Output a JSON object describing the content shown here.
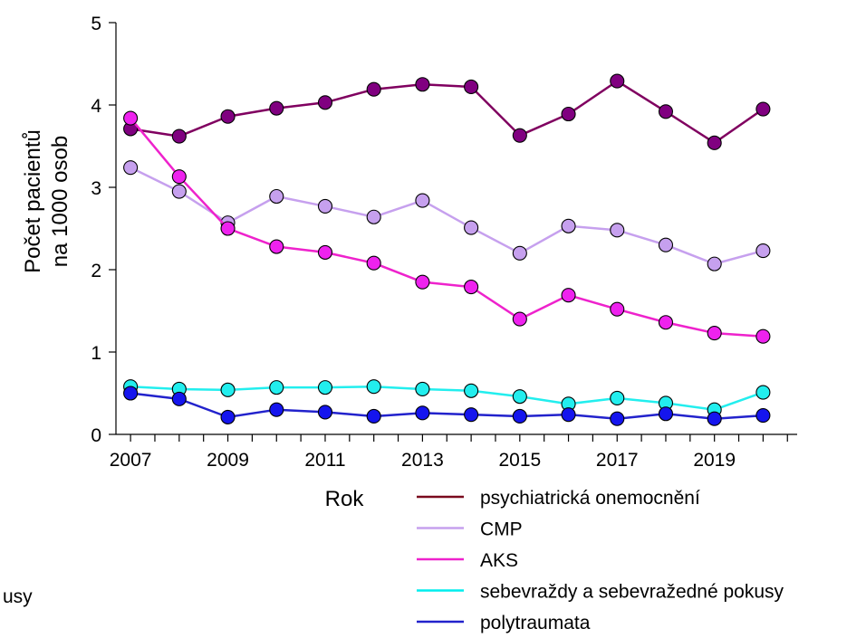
{
  "chart_data": {
    "type": "line",
    "title": "",
    "xlabel": "Rok",
    "ylabel_lines": [
      "Počet pacientů",
      "na 1000 osob"
    ],
    "x": [
      2007,
      2008,
      2009,
      2010,
      2011,
      2012,
      2013,
      2014,
      2015,
      2016,
      2017,
      2018,
      2019,
      2020
    ],
    "x_tick_labels": [
      "2007",
      "2009",
      "2011",
      "2013",
      "2015",
      "2017",
      "2019"
    ],
    "x_tick_values": [
      2007,
      2009,
      2011,
      2013,
      2015,
      2017,
      2019
    ],
    "xlim": [
      2006.7,
      2020.7
    ],
    "ylim": [
      0,
      5
    ],
    "y_ticks": [
      0,
      1,
      2,
      3,
      4,
      5
    ],
    "y_tick_labels": [
      "0",
      "1",
      "2",
      "3",
      "4",
      "5"
    ],
    "grid": false,
    "legend_position": "bottom-right",
    "clipped_fragment": "usy",
    "series": [
      {
        "name": "psychiatrická onemocnění",
        "legend_color": "#7a0a1e",
        "line_color": "#800060",
        "marker_color": "#800080",
        "values": [
          3.71,
          3.62,
          3.86,
          3.96,
          4.03,
          4.19,
          4.25,
          4.22,
          3.63,
          3.89,
          4.29,
          3.92,
          3.54,
          3.95
        ]
      },
      {
        "name": "CMP",
        "legend_color": "#c6a0ee",
        "line_color": "#c6a0ee",
        "marker_color": "#c6a0ee",
        "values": [
          3.24,
          2.95,
          2.57,
          2.89,
          2.77,
          2.64,
          2.84,
          2.51,
          2.2,
          2.53,
          2.48,
          2.3,
          2.07,
          2.23
        ]
      },
      {
        "name": "AKS",
        "legend_color": "#ee22cc",
        "line_color": "#ee22cc",
        "marker_color": "#ee22ee",
        "values": [
          3.84,
          3.13,
          2.5,
          2.28,
          2.21,
          2.08,
          1.85,
          1.79,
          1.4,
          1.69,
          1.52,
          1.36,
          1.23,
          1.19
        ]
      },
      {
        "name": "sebevraždy a sebevražedné pokusy",
        "legend_color": "#00eeee",
        "line_color": "#22eeee",
        "marker_color": "#22eeee",
        "values": [
          0.58,
          0.55,
          0.54,
          0.57,
          0.57,
          0.58,
          0.55,
          0.53,
          0.46,
          0.37,
          0.44,
          0.38,
          0.3,
          0.51
        ]
      },
      {
        "name": "polytraumata",
        "legend_color": "#2222cc",
        "line_color": "#2222cc",
        "marker_color": "#1515ee",
        "values": [
          0.5,
          0.43,
          0.21,
          0.3,
          0.27,
          0.22,
          0.26,
          0.24,
          0.22,
          0.24,
          0.19,
          0.25,
          0.19,
          0.23
        ]
      }
    ]
  }
}
